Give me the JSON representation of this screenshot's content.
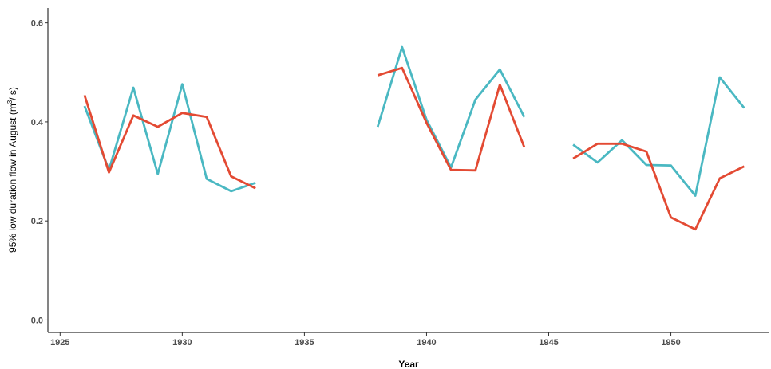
{
  "chart_data": {
    "type": "line",
    "title": "",
    "xlabel": "Year",
    "ylabel": {
      "prefix": "95% low duration flow in August  (m",
      "superscript": "3",
      "suffix": "/ s)"
    },
    "xlim": [
      1924.5,
      1954.0
    ],
    "ylim": [
      -0.025,
      0.63
    ],
    "xticks": [
      1925,
      1930,
      1935,
      1940,
      1945,
      1950
    ],
    "yticks": [
      0.0,
      0.2,
      0.4,
      0.6
    ],
    "ytick_labels": [
      "0.0",
      "0.2",
      "0.4",
      "0.6"
    ],
    "grid": false,
    "series": [
      {
        "color": "#4ab8c2",
        "values": [
          [
            1926,
            0.432
          ],
          [
            1927,
            0.303
          ],
          [
            1928,
            0.469
          ],
          [
            1929,
            0.295
          ],
          [
            1930,
            0.476
          ],
          [
            1931,
            0.285
          ],
          [
            1932,
            0.26
          ],
          [
            1933,
            0.277
          ],
          null,
          [
            1938,
            0.39
          ],
          [
            1939,
            0.551
          ],
          [
            1940,
            0.404
          ],
          [
            1941,
            0.308
          ],
          [
            1942,
            0.445
          ],
          [
            1943,
            0.506
          ],
          [
            1944,
            0.41
          ],
          null,
          [
            1946,
            0.354
          ],
          [
            1947,
            0.318
          ],
          [
            1948,
            0.363
          ],
          [
            1949,
            0.313
          ],
          [
            1950,
            0.312
          ],
          [
            1951,
            0.251
          ],
          [
            1952,
            0.49
          ],
          [
            1953,
            0.428
          ]
        ]
      },
      {
        "color": "#e34a33",
        "values": [
          [
            1926,
            0.454
          ],
          [
            1927,
            0.298
          ],
          [
            1928,
            0.413
          ],
          [
            1929,
            0.39
          ],
          [
            1930,
            0.418
          ],
          [
            1931,
            0.41
          ],
          [
            1932,
            0.29
          ],
          [
            1933,
            0.266
          ],
          null,
          [
            1938,
            0.494
          ],
          [
            1939,
            0.509
          ],
          [
            1940,
            0.398
          ],
          [
            1941,
            0.303
          ],
          [
            1942,
            0.302
          ],
          [
            1943,
            0.475
          ],
          [
            1944,
            0.349
          ],
          null,
          [
            1946,
            0.326
          ],
          [
            1947,
            0.356
          ],
          [
            1948,
            0.356
          ],
          [
            1949,
            0.34
          ],
          [
            1950,
            0.207
          ],
          [
            1951,
            0.183
          ],
          [
            1952,
            0.286
          ],
          [
            1953,
            0.31
          ]
        ]
      }
    ]
  }
}
